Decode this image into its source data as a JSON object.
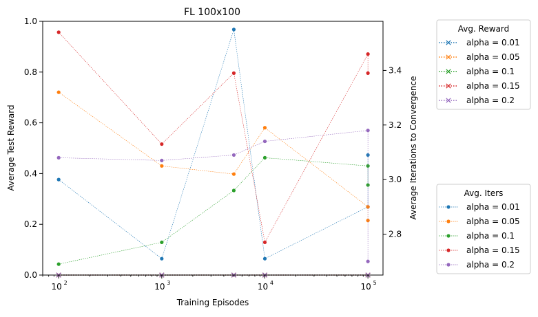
{
  "chart_data": {
    "type": "line",
    "title": "FL 100x100",
    "xlabel": "Training Episodes",
    "ylabel": "Average Test Reward",
    "ylabel_right": "Average Iterations to Convergence",
    "xscale": "log",
    "xlim": [
      70,
      140000
    ],
    "ylim": [
      0,
      1.0
    ],
    "ylim_right": [
      2.65,
      3.58
    ],
    "x": [
      100,
      1000,
      5000,
      10000,
      100000
    ],
    "x_ticks": [
      {
        "value": 100,
        "base": "10",
        "exp": "2"
      },
      {
        "value": 1000,
        "base": "10",
        "exp": "3"
      },
      {
        "value": 10000,
        "base": "10",
        "exp": "4"
      },
      {
        "value": 100000,
        "base": "10",
        "exp": "5"
      }
    ],
    "y_ticks": [
      "0.0",
      "0.2",
      "0.4",
      "0.6",
      "0.8",
      "1.0"
    ],
    "y_ticks_right": [
      "2.8",
      "3.0",
      "3.2",
      "3.4"
    ],
    "legend_reward": {
      "title": "Avg. Reward",
      "placement": "outside-top-right",
      "series": [
        {
          "name": "alpha = 0.01",
          "color": "#1f77b4",
          "values": [
            0,
            0,
            0,
            0,
            0
          ]
        },
        {
          "name": "alpha = 0.05",
          "color": "#ff7f0e",
          "values": [
            0,
            0,
            0,
            0,
            0
          ]
        },
        {
          "name": "alpha = 0.1",
          "color": "#2ca02c",
          "values": [
            0,
            0,
            0,
            0,
            0
          ]
        },
        {
          "name": "alpha = 0.15",
          "color": "#d62728",
          "values": [
            0,
            0,
            0,
            0,
            0
          ]
        },
        {
          "name": "alpha = 0.2",
          "color": "#9467bd",
          "values": [
            0,
            0,
            0,
            0,
            0
          ]
        }
      ]
    },
    "legend_iters": {
      "title": "Avg. Iters",
      "placement": "outside-bottom-right",
      "series": [
        {
          "name": "alpha = 0.01",
          "color": "#1f77b4",
          "values": [
            3.0,
            2.71,
            3.55,
            2.71,
            2.9,
            3.09
          ]
        },
        {
          "name": "alpha = 0.05",
          "color": "#ff7f0e",
          "values": [
            3.32,
            3.05,
            3.02,
            3.19,
            2.9,
            2.85
          ]
        },
        {
          "name": "alpha = 0.1",
          "color": "#2ca02c",
          "values": [
            2.69,
            2.77,
            2.96,
            3.08,
            3.05,
            2.98
          ]
        },
        {
          "name": "alpha = 0.15",
          "color": "#d62728",
          "values": [
            3.54,
            3.13,
            3.39,
            2.77,
            3.46,
            3.39
          ]
        },
        {
          "name": "alpha = 0.2",
          "color": "#9467bd",
          "values": [
            3.08,
            3.07,
            3.09,
            3.14,
            3.18,
            2.7
          ]
        }
      ],
      "x": [
        100,
        1000,
        5000,
        10000,
        100000,
        100000
      ]
    }
  }
}
